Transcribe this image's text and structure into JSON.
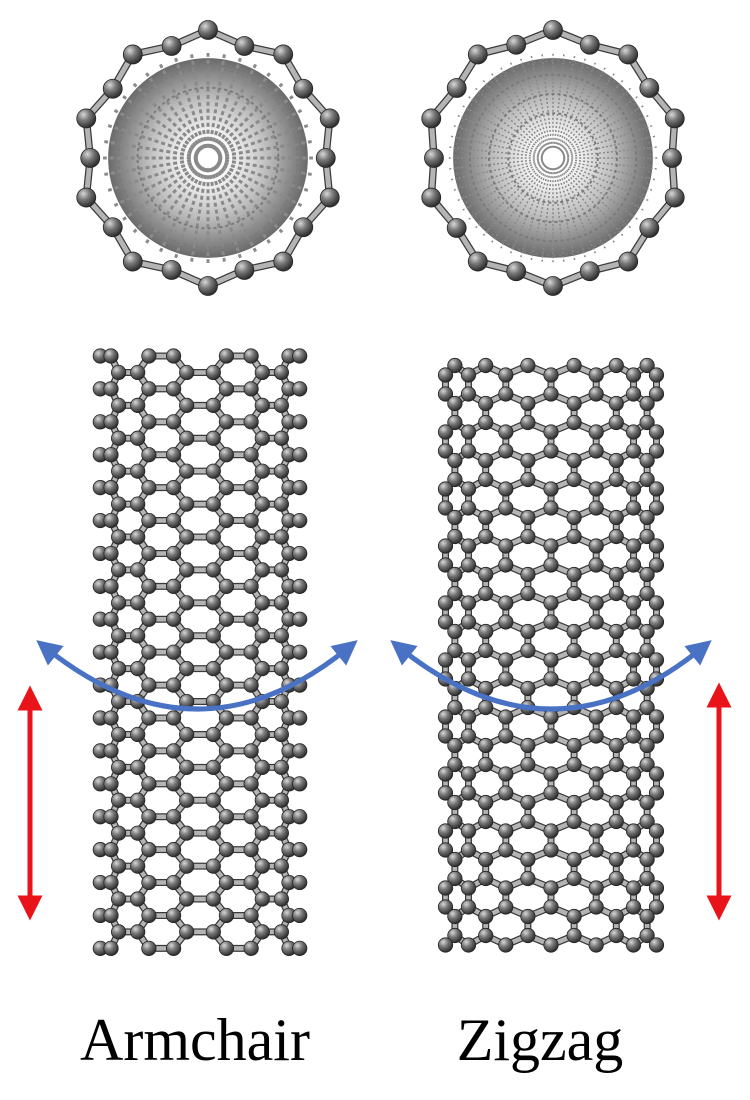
{
  "labels": {
    "armchair": "Armchair",
    "zigzag": "Zigzag"
  },
  "colors": {
    "atom": "#5a5a5a",
    "atom_highlight": "#c8c8c8",
    "bond": "#9a9a9a",
    "rotation_arrow": "#4a72c4",
    "axial_arrow": "#e8141a",
    "background": "#ffffff"
  },
  "structures": {
    "left_type": "armchair",
    "right_type": "zigzag"
  }
}
